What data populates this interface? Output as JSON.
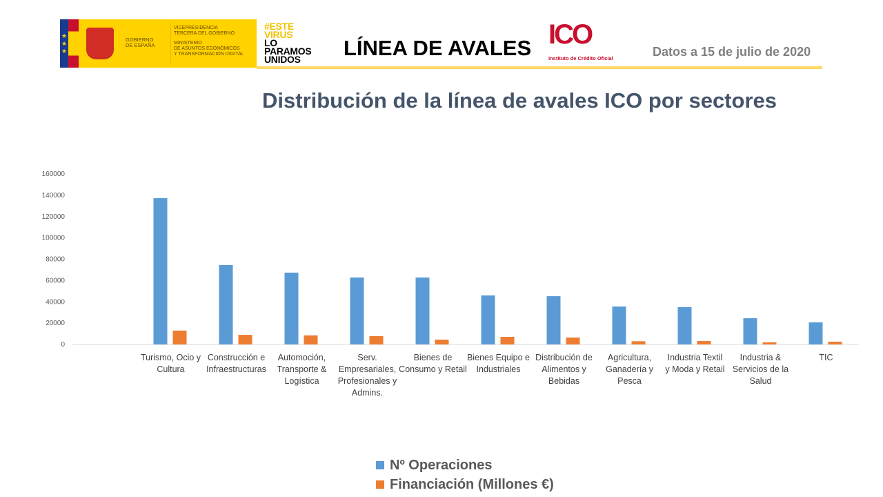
{
  "header": {
    "gov_lines": [
      "GOBIERNO",
      "DE ESPAÑA"
    ],
    "vice_lines": [
      "VICEPRESIDENCIA",
      "TERCERA DEL GOBIERNO",
      "",
      "MINISTERIO",
      "DE ASUNTOS ECONÓMICOS",
      "Y TRANSFORMACIÓN DIGITAL"
    ],
    "campaign_lines": [
      "#ESTE",
      "VIRUS",
      "LO",
      "PARAMOS",
      "UNIDOS"
    ],
    "title": "LÍNEA DE AVALES",
    "ico_logo": "ICO",
    "ico_name": "Instituto de Crédito Oficial",
    "date": "Datos a 15 de julio de 2020"
  },
  "colors": {
    "blue": "#5b9bd5",
    "orange": "#ed7d31"
  },
  "chart_data": {
    "type": "bar",
    "title": "Distribución de la línea de avales ICO por sectores",
    "categories": [
      "",
      "Turismo, Ocio y Cultura",
      "Construcción e Infraestructuras",
      "Automoción, Transporte & Logística",
      "Serv. Empresariales, Profesionales y Admins.",
      "Bienes de Consumo y Retail",
      "Bienes Equipo e Industriales",
      "Distribución de Alimentos y Bebidas",
      "Agricultura, Ganadería y Pesca",
      "Industria Textil y Moda y Retail",
      "Industria & Servicios de la Salud",
      "TIC"
    ],
    "series": [
      {
        "name": "Nº Operaciones",
        "values": [
          null,
          137300,
          74500,
          67400,
          62800,
          62800,
          46000,
          45300,
          35600,
          35000,
          24600,
          20700
        ]
      },
      {
        "name": "Financiación (Millones €)",
        "values": [
          null,
          13000,
          9000,
          8500,
          7800,
          4500,
          7100,
          6500,
          3000,
          3200,
          2000,
          2600
        ]
      }
    ],
    "ylim": [
      0,
      160000
    ],
    "yticks": [
      "0",
      "20000",
      "40000",
      "60000",
      "80000",
      "100000",
      "120000",
      "140000",
      "160000"
    ],
    "grid": false,
    "legend": "bottom"
  }
}
